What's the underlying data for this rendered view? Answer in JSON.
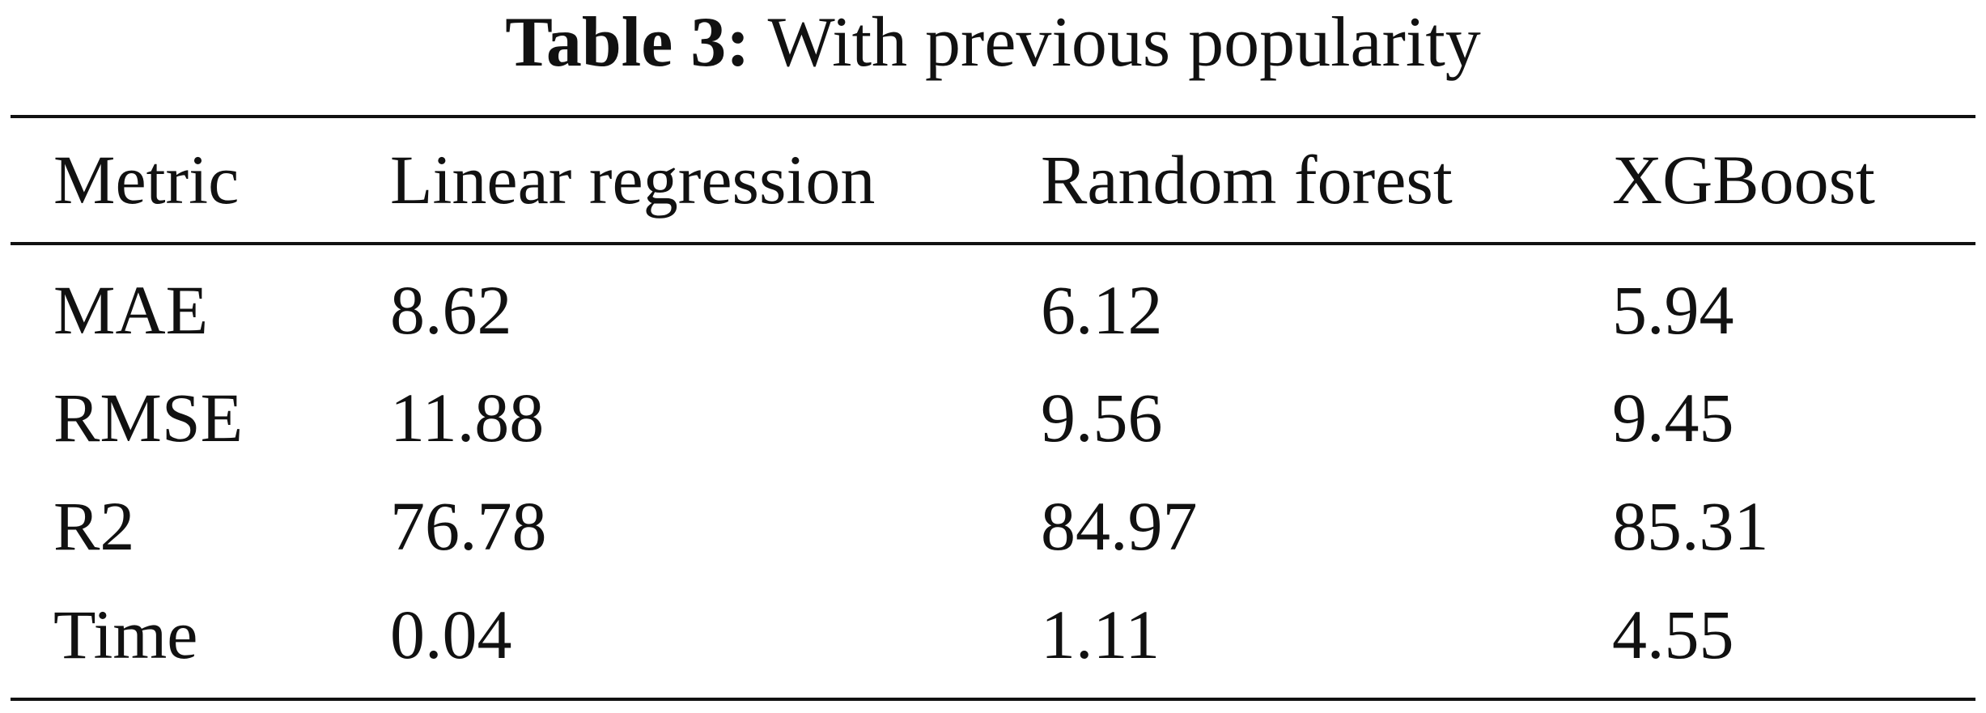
{
  "title": {
    "label": "Table 3:",
    "text": "With previous popularity"
  },
  "table": {
    "header": [
      "Metric",
      "Linear regression",
      "Random forest",
      "XGBoost"
    ],
    "rows": [
      [
        "MAE",
        "8.62",
        "6.12",
        "5.94"
      ],
      [
        "RMSE",
        "11.88",
        "9.56",
        "9.45"
      ],
      [
        "R2",
        "76.78",
        "84.97",
        "85.31"
      ],
      [
        "Time",
        "0.04",
        "1.11",
        "4.55"
      ]
    ]
  }
}
